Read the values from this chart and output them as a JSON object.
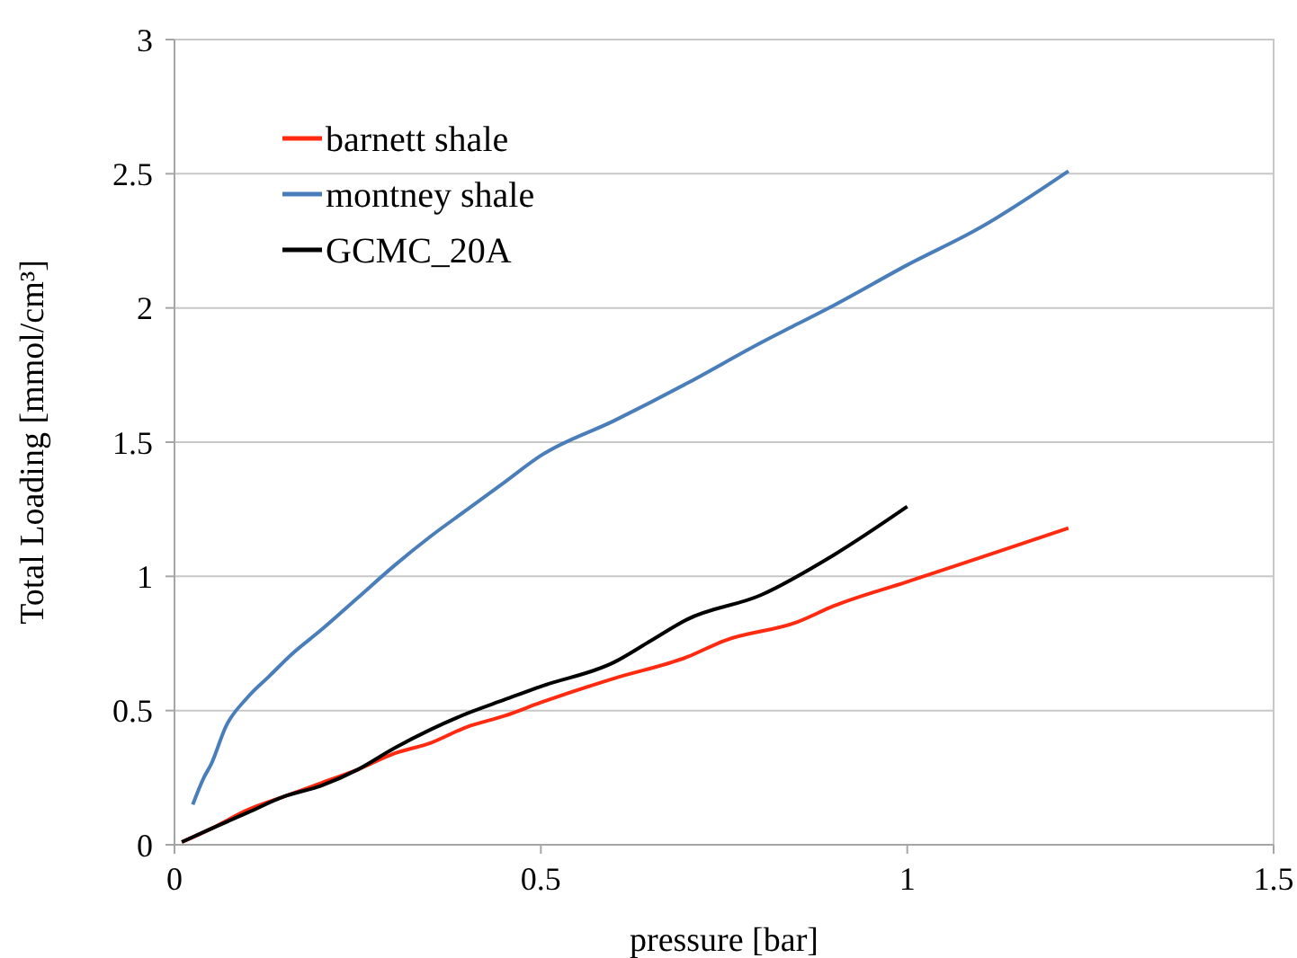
{
  "chart_data": {
    "type": "line",
    "xlabel": "pressure [bar]",
    "ylabel": "Total Loading [mmol/cm³]",
    "xlim": [
      0,
      1.5
    ],
    "xticks": [
      0,
      0.5,
      1,
      1.5
    ],
    "ylim": [
      0,
      3
    ],
    "yticks": [
      0,
      0.5,
      1,
      1.5,
      2,
      2.5,
      3
    ],
    "grid": "y",
    "legend": "top left",
    "marker": "none",
    "line_style": "solid",
    "series": [
      {
        "name": "barnett shale",
        "color": "#ff2a0f",
        "x": [
          0.01,
          0.05,
          0.1,
          0.15,
          0.2,
          0.25,
          0.3,
          0.35,
          0.4,
          0.45,
          0.5,
          0.6,
          0.7,
          0.75,
          0.85,
          0.9,
          1.0,
          1.1,
          1.22
        ],
        "values": [
          0.01,
          0.06,
          0.13,
          0.18,
          0.23,
          0.28,
          0.34,
          0.38,
          0.44,
          0.48,
          0.53,
          0.62,
          0.7,
          0.76,
          0.83,
          0.89,
          0.98,
          1.07,
          1.18
        ]
      },
      {
        "name": "montney shale",
        "color": "#4a7ebb",
        "x": [
          0.025,
          0.04,
          0.05,
          0.07,
          0.1,
          0.13,
          0.16,
          0.2,
          0.25,
          0.3,
          0.35,
          0.4,
          0.45,
          0.5,
          0.6,
          0.7,
          0.8,
          0.85,
          0.9,
          1.0,
          1.1,
          1.22
        ],
        "values": [
          0.15,
          0.25,
          0.3,
          0.44,
          0.55,
          0.63,
          0.71,
          0.8,
          0.92,
          1.04,
          1.15,
          1.25,
          1.35,
          1.45,
          1.58,
          1.72,
          1.87,
          1.94,
          2.01,
          2.16,
          2.3,
          2.51
        ]
      },
      {
        "name": "GCMC_20A",
        "color": "#000000",
        "x": [
          0.01,
          0.05,
          0.1,
          0.15,
          0.2,
          0.25,
          0.3,
          0.35,
          0.4,
          0.45,
          0.5,
          0.6,
          0.65,
          0.7,
          0.8,
          0.9,
          1.0
        ],
        "values": [
          0.01,
          0.06,
          0.12,
          0.18,
          0.22,
          0.28,
          0.36,
          0.43,
          0.49,
          0.54,
          0.59,
          0.68,
          0.76,
          0.84,
          0.93,
          1.08,
          1.26
        ]
      }
    ]
  }
}
